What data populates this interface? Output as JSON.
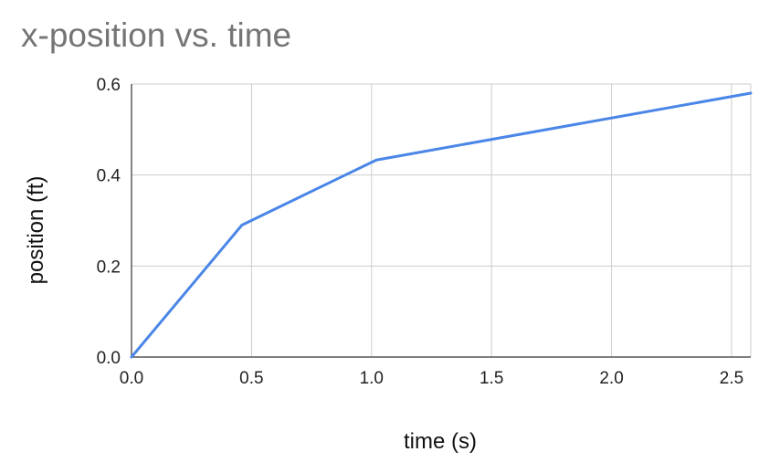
{
  "chart_data": {
    "type": "line",
    "title": "x-position vs. time",
    "xlabel": "time (s)",
    "ylabel": "position (ft)",
    "xlim": [
      0,
      2.58
    ],
    "ylim": [
      0,
      0.6
    ],
    "x_ticks": [
      0,
      0.5,
      1.0,
      1.5,
      2.0,
      2.5
    ],
    "x_tick_labels": [
      "0.0",
      "0.5",
      "1.0",
      "1.5",
      "2.0",
      "2.5"
    ],
    "y_ticks": [
      0,
      0.2,
      0.4,
      0.6
    ],
    "y_tick_labels": [
      "0.0",
      "0.2",
      "0.4",
      "0.6"
    ],
    "grid": true,
    "legend": "none",
    "series": [
      {
        "color": "#4a86e8",
        "x": [
          0,
          0.46,
          1.02,
          2.58
        ],
        "y": [
          0,
          0.29,
          0.433,
          0.58
        ]
      }
    ]
  }
}
